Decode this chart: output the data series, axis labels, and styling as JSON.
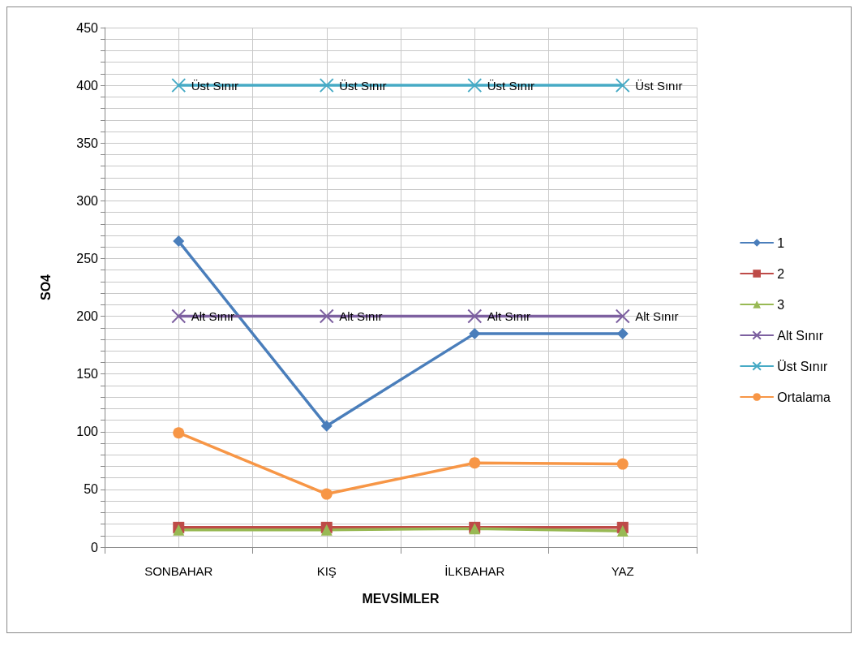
{
  "chart_data": {
    "type": "line",
    "xlabel": "MEVSİMLER",
    "ylabel": "SO4",
    "categories": [
      "SONBAHAR",
      "KIŞ",
      "İLKBAHAR",
      "YAZ"
    ],
    "series": [
      {
        "name": "1",
        "color": "#4a7ebb",
        "marker": "diamond",
        "values": [
          265,
          105,
          185,
          185
        ]
      },
      {
        "name": "2",
        "color": "#be4b48",
        "marker": "square",
        "values": [
          17,
          17,
          17,
          17
        ]
      },
      {
        "name": "3",
        "color": "#98b954",
        "marker": "triangle",
        "values": [
          15,
          15,
          16,
          14
        ]
      },
      {
        "name": "Alt Sınır",
        "color": "#7d60a0",
        "marker": "cross",
        "values": [
          200,
          200,
          200,
          200
        ],
        "value_labels": [
          "Alt Sınır",
          "Alt Sınır",
          "Alt Sınır",
          "Alt Sınır"
        ]
      },
      {
        "name": "Üst Sınır",
        "color": "#46aac5",
        "marker": "cross",
        "values": [
          400,
          400,
          400,
          400
        ],
        "value_labels": [
          "Üst Sınır",
          "Üst Sınır",
          "Üst Sınır",
          "Üst Sınır"
        ]
      },
      {
        "name": "Ortalama",
        "color": "#f79646",
        "marker": "circle",
        "values": [
          99,
          46,
          73,
          72
        ]
      }
    ],
    "ylim": [
      0,
      450
    ],
    "yticks": [
      0,
      {
        "value": 10,
        "label": null
      },
      {
        "value": 20,
        "label": null
      },
      {
        "value": 30,
        "label": null
      },
      {
        "value": 40,
        "label": null
      },
      50,
      {
        "value": 60,
        "label": null
      },
      {
        "value": 70,
        "label": null
      },
      {
        "value": 80,
        "label": null
      },
      {
        "value": 90,
        "label": null
      },
      100,
      {
        "value": 110,
        "label": null
      },
      {
        "value": 120,
        "label": null
      },
      {
        "value": 130,
        "label": null
      },
      {
        "value": 140,
        "label": null
      },
      150,
      {
        "value": 160,
        "label": null
      },
      {
        "value": 170,
        "label": null
      },
      {
        "value": 180,
        "label": null
      },
      {
        "value": 190,
        "label": null
      },
      200,
      {
        "value": 210,
        "label": null
      },
      {
        "value": 220,
        "label": null
      },
      {
        "value": 230,
        "label": null
      },
      {
        "value": 240,
        "label": null
      },
      250,
      {
        "value": 260,
        "label": null
      },
      {
        "value": 270,
        "label": null
      },
      {
        "value": 280,
        "label": null
      },
      {
        "value": 290,
        "label": null
      },
      300,
      {
        "value": 310,
        "label": null
      },
      {
        "value": 320,
        "label": null
      },
      {
        "value": 330,
        "label": null
      },
      {
        "value": 340,
        "label": null
      },
      350,
      {
        "value": 360,
        "label": null
      },
      {
        "value": 370,
        "label": null
      },
      {
        "value": 380,
        "label": null
      },
      {
        "value": 390,
        "label": null
      },
      400,
      {
        "value": 410,
        "label": null
      },
      {
        "value": 420,
        "label": null
      },
      {
        "value": 430,
        "label": null
      },
      {
        "value": 440,
        "label": null
      },
      450
    ],
    "grid": true,
    "legend": "right",
    "line_style": "solid"
  }
}
